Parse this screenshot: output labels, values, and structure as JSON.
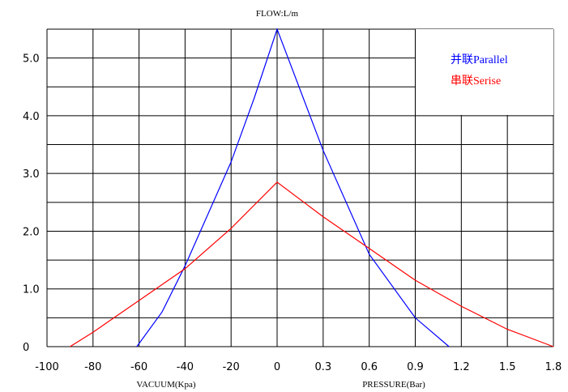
{
  "chart_data": {
    "type": "line",
    "title": "FLOW:L/m",
    "x_label_left": "VACUUM(Kpa)",
    "x_label_right": "PRESSURE(Bar)",
    "x_ticks_left": [
      "-100",
      "-80",
      "-60",
      "-40",
      "-20",
      "0"
    ],
    "x_ticks_right": [
      "0.3",
      "0.6",
      "0.9",
      "1.2",
      "1.5",
      "1.8"
    ],
    "y_ticks": [
      "0",
      "1.0",
      "2.0",
      "3.0",
      "4.0",
      "5.0"
    ],
    "y_range": [
      0,
      5.5
    ],
    "grid": true,
    "legend_position": "top-right",
    "series": [
      {
        "name": "并联Parallel",
        "color": "#0000ff",
        "vacuum": {
          "x": [
            -61,
            -50,
            -40,
            -30,
            -20,
            -10,
            0
          ],
          "y": [
            0,
            0.6,
            1.4,
            2.3,
            3.2,
            4.3,
            5.5
          ]
        },
        "pressure": {
          "x": [
            0,
            0.3,
            0.6,
            0.9,
            1.12
          ],
          "y": [
            5.5,
            3.4,
            1.6,
            0.5,
            0
          ]
        }
      },
      {
        "name": "串联Serise",
        "color": "#ff0000",
        "vacuum": {
          "x": [
            -90,
            -80,
            -60,
            -40,
            -20,
            0
          ],
          "y": [
            0,
            0.25,
            0.8,
            1.35,
            2.05,
            2.85
          ]
        },
        "pressure": {
          "x": [
            0,
            0.3,
            0.6,
            0.9,
            1.2,
            1.5,
            1.8
          ],
          "y": [
            2.85,
            2.25,
            1.7,
            1.15,
            0.7,
            0.3,
            0
          ]
        }
      }
    ]
  }
}
